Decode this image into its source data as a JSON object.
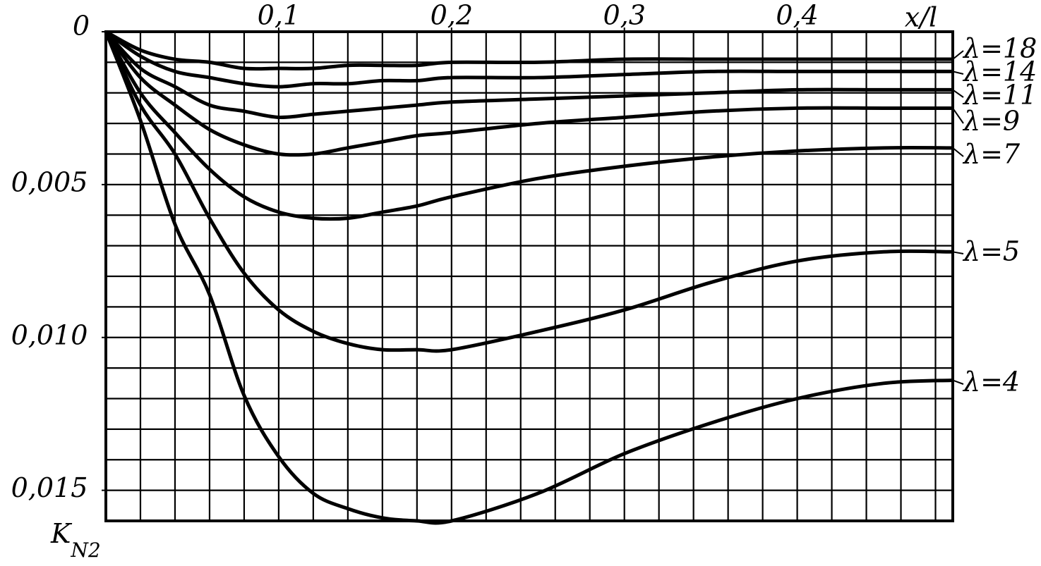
{
  "chart_data": {
    "type": "line",
    "xlabel": "x/l",
    "ylabel": {
      "main": "K",
      "sub": "N2"
    },
    "x": [
      0,
      0.02,
      0.04,
      0.06,
      0.08,
      0.1,
      0.12,
      0.14,
      0.16,
      0.18,
      0.2,
      0.25,
      0.3,
      0.35,
      0.4,
      0.45,
      0.49
    ],
    "series": [
      {
        "name": "λ=18",
        "color": "#000000",
        "values": [
          0,
          0.0006,
          0.0009,
          0.001,
          0.0012,
          0.0012,
          0.0012,
          0.0011,
          0.0011,
          0.0011,
          0.001,
          0.001,
          0.0009,
          0.0009,
          0.0009,
          0.0009,
          0.0009
        ]
      },
      {
        "name": "λ=14",
        "color": "#000000",
        "values": [
          0,
          0.0008,
          0.0013,
          0.0015,
          0.0017,
          0.0018,
          0.0017,
          0.0017,
          0.0016,
          0.0016,
          0.0015,
          0.0015,
          0.0014,
          0.0013,
          0.0013,
          0.0013,
          0.0013
        ]
      },
      {
        "name": "λ=11",
        "color": "#000000",
        "values": [
          0,
          0.0012,
          0.0018,
          0.0024,
          0.0026,
          0.0028,
          0.0027,
          0.0026,
          0.0025,
          0.0024,
          0.0023,
          0.0022,
          0.0021,
          0.002,
          0.0019,
          0.0019,
          0.0019
        ]
      },
      {
        "name": "λ=9",
        "color": "#000000",
        "values": [
          0,
          0.0015,
          0.0024,
          0.0032,
          0.0037,
          0.004,
          0.004,
          0.0038,
          0.0036,
          0.0034,
          0.0033,
          0.003,
          0.0028,
          0.0026,
          0.0025,
          0.0025,
          0.0025
        ]
      },
      {
        "name": "λ=7",
        "color": "#000000",
        "values": [
          0,
          0.002,
          0.0033,
          0.0045,
          0.0054,
          0.0059,
          0.0061,
          0.0061,
          0.0059,
          0.0057,
          0.0054,
          0.0048,
          0.0044,
          0.0041,
          0.0039,
          0.0038,
          0.0038
        ]
      },
      {
        "name": "λ=5",
        "color": "#000000",
        "values": [
          0,
          0.0024,
          0.004,
          0.0061,
          0.0079,
          0.0091,
          0.0098,
          0.0102,
          0.0104,
          0.0104,
          0.0104,
          0.0098,
          0.0091,
          0.0082,
          0.0075,
          0.0072,
          0.0072
        ]
      },
      {
        "name": "λ=4",
        "color": "#000000",
        "values": [
          0,
          0.0029,
          0.0063,
          0.0086,
          0.0119,
          0.0139,
          0.0151,
          0.0156,
          0.0159,
          0.016,
          0.016,
          0.0151,
          0.0138,
          0.0128,
          0.012,
          0.0115,
          0.0114
        ]
      }
    ],
    "xlim": [
      0,
      0.49
    ],
    "ylim": [
      0,
      0.016
    ],
    "y_inverted": true,
    "xticks": [
      {
        "value": 0.1,
        "label": "0,1"
      },
      {
        "value": 0.2,
        "label": "0,2"
      },
      {
        "value": 0.3,
        "label": "0,3"
      },
      {
        "value": 0.4,
        "label": "0,4"
      }
    ],
    "yticks": [
      0,
      {
        "value": 0.005,
        "label": "0,005"
      },
      {
        "value": 0.01,
        "label": "0,010"
      },
      {
        "value": 0.015,
        "label": "0,015"
      }
    ],
    "x_grid": [
      0.02,
      0.04,
      0.06,
      0.08,
      0.1,
      0.12,
      0.14,
      0.16,
      0.18,
      0.2,
      0.22,
      0.24,
      0.26,
      0.28,
      0.3,
      0.32,
      0.34,
      0.36,
      0.38,
      0.4,
      0.42,
      0.44,
      0.46,
      0.48
    ],
    "y_grid": [
      0.001,
      0.002,
      0.003,
      0.004,
      0.005,
      0.006,
      0.007,
      0.008,
      0.009,
      0.01,
      0.011,
      0.012,
      0.013,
      0.014,
      0.015
    ],
    "grid": true
  }
}
